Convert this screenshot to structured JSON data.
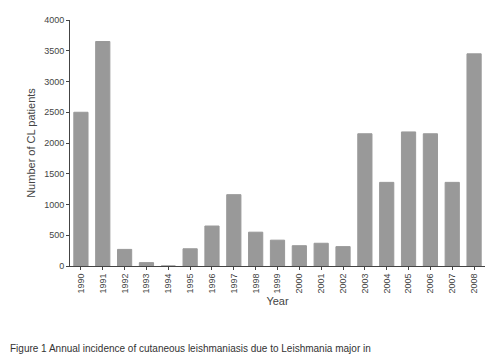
{
  "chart_data": {
    "type": "bar",
    "categories": [
      "1990",
      "1991",
      "1992",
      "1993",
      "1994",
      "1995",
      "1996",
      "1997",
      "1998",
      "1999",
      "2000",
      "2001",
      "2002",
      "2003",
      "2004",
      "2005",
      "2006",
      "2007",
      "2008"
    ],
    "values": [
      2500,
      3650,
      270,
      55,
      0,
      280,
      650,
      1160,
      550,
      420,
      330,
      370,
      315,
      2150,
      1360,
      2180,
      2150,
      1360,
      3450
    ],
    "color": "#999999",
    "xlabel": "Year",
    "ylabel": "Number of CL patients",
    "ylim": [
      0,
      4000
    ],
    "yticks": [
      0,
      500,
      1000,
      1500,
      2000,
      2500,
      3000,
      3500,
      4000
    ],
    "grid": false,
    "annotations": [
      "Figure 1",
      "Annual incidence of cutaneous leishmaniasis due to Leishmania major in"
    ]
  }
}
